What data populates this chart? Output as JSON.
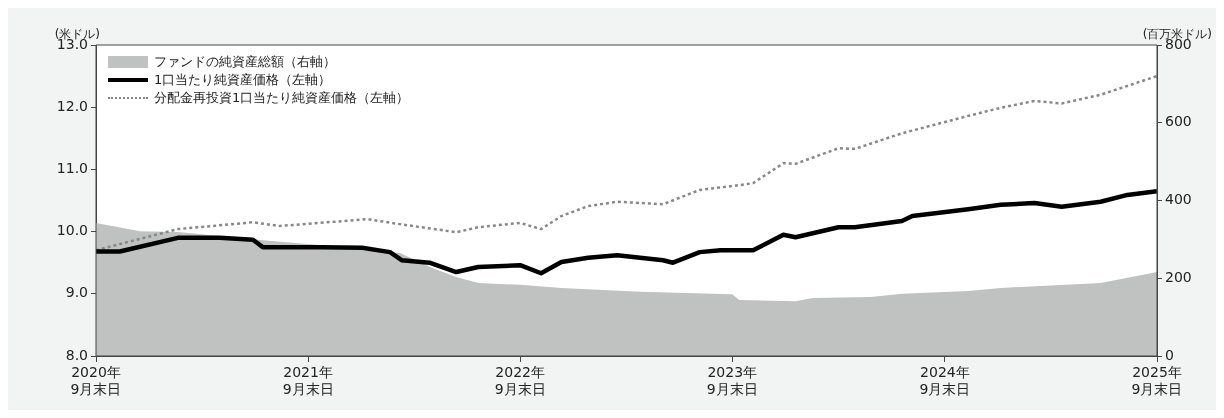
{
  "chart_data": {
    "type": "line",
    "ylabel": "(米ドル)",
    "y2label": "(百万米ドル)",
    "xlim": [
      "2020-09-30",
      "2025-09-30"
    ],
    "xticks": [
      {
        "value": "2020-09-30",
        "label": "2020年\n9月末日"
      },
      {
        "value": "2021-09-30",
        "label": "2021年\n9月末日"
      },
      {
        "value": "2022-09-30",
        "label": "2022年\n9月末日"
      },
      {
        "value": "2023-09-30",
        "label": "2023年\n9月末日"
      },
      {
        "value": "2024-09-30",
        "label": "2024年\n9月末日"
      },
      {
        "value": "2025-09-30",
        "label": "2025年\n9月末日"
      }
    ],
    "ylim": [
      8,
      13
    ],
    "yticks": [
      {
        "value": 8,
        "label": "8.0"
      },
      {
        "value": 9,
        "label": "9.0"
      },
      {
        "value": 10,
        "label": "10.0"
      },
      {
        "value": 11,
        "label": "11.0"
      },
      {
        "value": 12,
        "label": "12.0"
      },
      {
        "value": 13,
        "label": "13.0"
      }
    ],
    "y2lim": [
      0,
      800
    ],
    "y2ticks": [
      0,
      200,
      400,
      600,
      800
    ],
    "grid": false,
    "legend": "top left",
    "series": [
      {
        "name": "ファンドの純資産総額（右軸）",
        "type": "area",
        "axis": "y2",
        "color": "#c0c1c1",
        "x": [
          "2020-09-30",
          "2020-12-15",
          "2021-02-18",
          "2021-07-14",
          "2021-10-25",
          "2022-01-01",
          "2022-03-07",
          "2022-05-03",
          "2022-06-12",
          "2022-07-20",
          "2022-09-30",
          "2022-12-10",
          "2023-04-25",
          "2023-09-30",
          "2023-10-12",
          "2024-01-17",
          "2024-02-16",
          "2024-05-25",
          "2024-07-18",
          "2024-11-09",
          "2025-01-04",
          "2025-06-25",
          "2025-09-30"
        ],
        "values": [
          342,
          321,
          319,
          298,
          285,
          272,
          265,
          226,
          203,
          188,
          183,
          175,
          165,
          159,
          144,
          141,
          149,
          152,
          160,
          167,
          175,
          188,
          216
        ]
      },
      {
        "name": "1口当たり純資産価格（左軸）",
        "type": "line",
        "axis": "y",
        "color": "#000000",
        "x": [
          "2020-09-30",
          "2020-11-10",
          "2021-02-18",
          "2021-05-01",
          "2021-06-27",
          "2021-07-14",
          "2021-10-25",
          "2022-01-01",
          "2022-02-18",
          "2022-03-10",
          "2022-04-27",
          "2022-06-12",
          "2022-07-20",
          "2022-09-30",
          "2022-11-05",
          "2022-12-10",
          "2023-01-25",
          "2023-03-16",
          "2023-06-03",
          "2023-06-20",
          "2023-08-05",
          "2023-09-10",
          "2023-11-05",
          "2023-12-27",
          "2024-01-17",
          "2024-03-31",
          "2024-04-28",
          "2024-07-18",
          "2024-08-05",
          "2024-11-09",
          "2025-01-04",
          "2025-03-03",
          "2025-04-19",
          "2025-06-25",
          "2025-08-10",
          "2025-09-30"
        ],
        "values": [
          9.68,
          9.68,
          9.9,
          9.9,
          9.87,
          9.75,
          9.75,
          9.74,
          9.67,
          9.54,
          9.5,
          9.35,
          9.43,
          9.46,
          9.33,
          9.51,
          9.58,
          9.62,
          9.54,
          9.5,
          9.67,
          9.7,
          9.7,
          9.95,
          9.91,
          10.07,
          10.07,
          10.17,
          10.25,
          10.36,
          10.43,
          10.46,
          10.4,
          10.48,
          10.59,
          10.65
        ]
      },
      {
        "name": "分配金再投資1口当たり純資産価格（左軸）",
        "type": "line",
        "axis": "y",
        "color": "#888888",
        "line_style": "dotted",
        "x": [
          "2020-09-30",
          "2021-02-18",
          "2021-06-27",
          "2021-08-12",
          "2022-01-10",
          "2022-03-07",
          "2022-06-12",
          "2022-07-20",
          "2022-09-30",
          "2022-11-05",
          "2022-12-10",
          "2023-01-25",
          "2023-03-16",
          "2023-06-03",
          "2023-08-05",
          "2023-10-15",
          "2023-11-05",
          "2023-12-27",
          "2024-01-17",
          "2024-03-31",
          "2024-04-28",
          "2024-07-18",
          "2024-11-09",
          "2025-01-04",
          "2025-03-03",
          "2025-04-19",
          "2025-06-25",
          "2025-09-30"
        ],
        "values": [
          9.7,
          10.04,
          10.15,
          10.09,
          10.2,
          10.12,
          9.99,
          10.07,
          10.14,
          10.04,
          10.25,
          10.41,
          10.48,
          10.44,
          10.67,
          10.75,
          10.78,
          11.1,
          11.09,
          11.34,
          11.33,
          11.58,
          11.86,
          11.99,
          12.1,
          12.06,
          12.2,
          12.5
        ]
      }
    ]
  }
}
